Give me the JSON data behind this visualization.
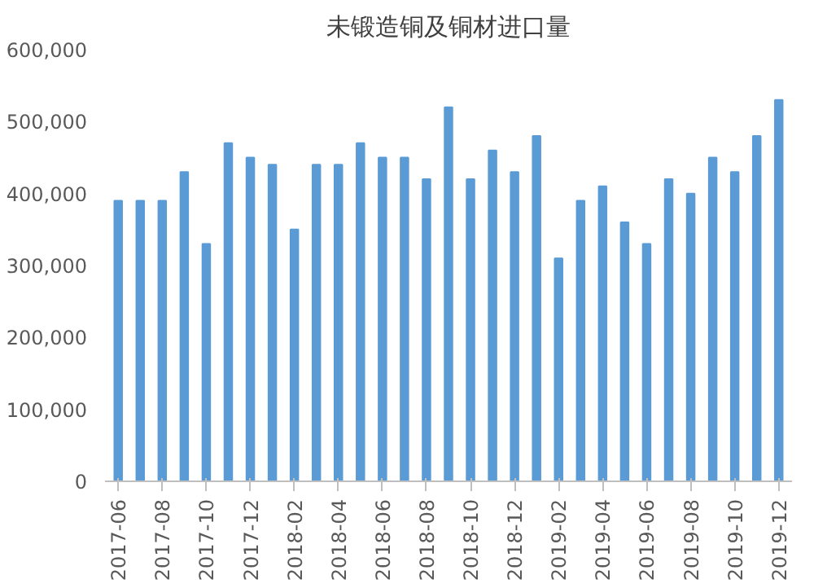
{
  "chart_data": {
    "type": "bar",
    "title": "未锻造铜及铜材进口量",
    "categories": [
      "2017-06",
      null,
      "2017-08",
      null,
      "2017-10",
      null,
      "2017-12",
      null,
      "2018-02",
      null,
      "2018-04",
      null,
      "2018-06",
      null,
      "2018-08",
      null,
      "2018-10",
      null,
      "2018-12",
      null,
      "2019-02",
      null,
      "2019-04",
      null,
      "2019-06",
      null,
      "2019-08",
      null,
      "2019-10",
      null,
      "2019-12"
    ],
    "values": [
      390000,
      390000,
      390000,
      430000,
      330000,
      470000,
      450000,
      440000,
      350000,
      440000,
      440000,
      470000,
      450000,
      450000,
      420000,
      520000,
      420000,
      460000,
      430000,
      480000,
      310000,
      390000,
      410000,
      360000,
      330000,
      420000,
      400000,
      450000,
      430000,
      480000,
      530000
    ],
    "color": "#5b9bd5",
    "ylim": [
      0,
      600000
    ],
    "yticks": [
      {
        "value": 0,
        "label": "0"
      },
      {
        "value": 100000,
        "label": "100,000"
      },
      {
        "value": 200000,
        "label": "200,000"
      },
      {
        "value": 300000,
        "label": "300,000"
      },
      {
        "value": 400000,
        "label": "400,000"
      },
      {
        "value": 500000,
        "label": "500,000"
      },
      {
        "value": 600000,
        "label": "600,000"
      }
    ],
    "grid": false
  }
}
